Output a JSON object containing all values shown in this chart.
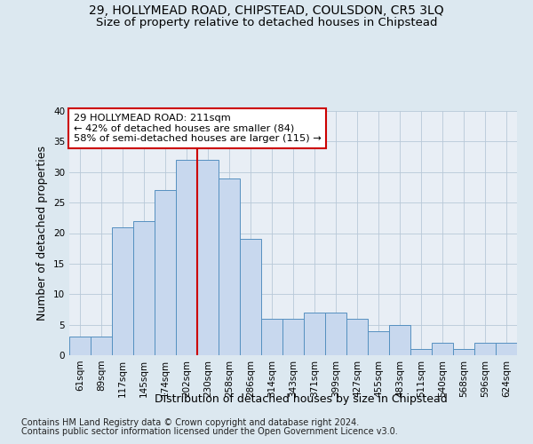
{
  "title": "29, HOLLYMEAD ROAD, CHIPSTEAD, COULSDON, CR5 3LQ",
  "subtitle": "Size of property relative to detached houses in Chipstead",
  "xlabel": "Distribution of detached houses by size in Chipstead",
  "ylabel": "Number of detached properties",
  "footer1": "Contains HM Land Registry data © Crown copyright and database right 2024.",
  "footer2": "Contains public sector information licensed under the Open Government Licence v3.0.",
  "categories": [
    "61sqm",
    "89sqm",
    "117sqm",
    "145sqm",
    "174sqm",
    "202sqm",
    "230sqm",
    "258sqm",
    "286sqm",
    "314sqm",
    "343sqm",
    "371sqm",
    "399sqm",
    "427sqm",
    "455sqm",
    "483sqm",
    "511sqm",
    "540sqm",
    "568sqm",
    "596sqm",
    "624sqm"
  ],
  "values": [
    3,
    3,
    21,
    22,
    27,
    32,
    32,
    29,
    19,
    6,
    6,
    7,
    7,
    6,
    4,
    5,
    1,
    2,
    1,
    2,
    2
  ],
  "bar_color": "#c8d8ee",
  "bar_edge_color": "#5590c0",
  "reference_line_index": 5.5,
  "reference_line_color": "#cc0000",
  "annotation_text": "29 HOLLYMEAD ROAD: 211sqm\n← 42% of detached houses are smaller (84)\n58% of semi-detached houses are larger (115) →",
  "annotation_box_color": "#ffffff",
  "annotation_box_edge": "#cc0000",
  "ylim": [
    0,
    40
  ],
  "yticks": [
    0,
    5,
    10,
    15,
    20,
    25,
    30,
    35,
    40
  ],
  "bg_color": "#dce8f0",
  "plot_bg_color": "#e8eef5",
  "grid_color": "#b8c8d8",
  "title_fontsize": 10,
  "subtitle_fontsize": 9.5,
  "tick_fontsize": 7.5,
  "label_fontsize": 9,
  "footer_fontsize": 7
}
